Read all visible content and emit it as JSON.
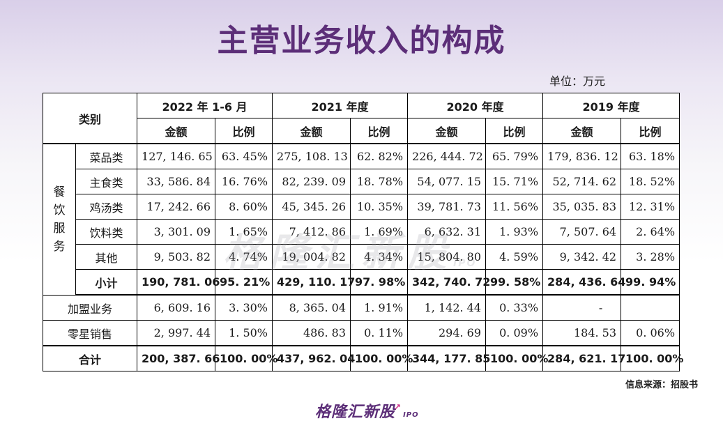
{
  "title": "主营业务收入的构成",
  "unit": "单位：万元",
  "header": {
    "category": "类别",
    "periods": [
      "2022 年 1-6 月",
      "2021 年度",
      "2020 年度",
      "2019 年度"
    ],
    "amount": "金额",
    "ratio": "比例"
  },
  "group_label": [
    "餐",
    "饮",
    "服",
    "务"
  ],
  "rows": [
    {
      "name": "菜品类",
      "values": [
        "127, 146. 65",
        "63. 45%",
        "275, 108. 13",
        "62. 82%",
        "226, 444. 72",
        "65. 79%",
        "179, 836. 12",
        "63. 18%"
      ]
    },
    {
      "name": "主食类",
      "values": [
        "33, 586. 84",
        "16. 76%",
        "82, 239. 09",
        "18. 78%",
        "54, 077. 15",
        "15. 71%",
        "52, 714. 62",
        "18. 52%"
      ]
    },
    {
      "name": "鸡汤类",
      "values": [
        "17, 242. 66",
        "8. 60%",
        "45, 345. 26",
        "10. 35%",
        "39, 781. 73",
        "11. 56%",
        "35, 035. 83",
        "12. 31%"
      ]
    },
    {
      "name": "饮料类",
      "values": [
        "3, 301. 09",
        "1. 65%",
        "7, 412. 86",
        "1. 69%",
        "6, 632. 31",
        "1. 93%",
        "7, 507. 64",
        "2. 64%"
      ]
    },
    {
      "name": "其他",
      "values": [
        "9, 503. 82",
        "4. 74%",
        "19, 004. 82",
        "4. 34%",
        "15, 804. 80",
        "4. 59%",
        "9, 342. 42",
        "3. 28%"
      ]
    }
  ],
  "subtotal": {
    "name": "小计",
    "values": [
      "190, 781. 06",
      "95. 21%",
      "429, 110. 17",
      "97. 98%",
      "342, 740. 72",
      "99. 58%",
      "284, 436. 64",
      "99. 94%"
    ]
  },
  "others": [
    {
      "name": "加盟业务",
      "values": [
        "6, 609. 16",
        "3. 30%",
        "8, 365. 04",
        "1. 91%",
        "1, 142. 44",
        "0. 33%",
        "-",
        ""
      ]
    },
    {
      "name": "零星销售",
      "values": [
        "2, 997. 44",
        "1. 50%",
        "486. 83",
        "0. 11%",
        "294. 69",
        "0. 09%",
        "184. 53",
        "0. 06%"
      ]
    }
  ],
  "total": {
    "name": "合计",
    "values": [
      "200, 387. 66",
      "100. 00%",
      "437, 962. 04",
      "100. 00%",
      "344, 177. 85",
      "100. 00%",
      "284, 621. 17",
      "100. 00%"
    ]
  },
  "watermark": {
    "text": "格隆汇新股",
    "suffix": "IPO"
  },
  "source": "信息来源：招股书",
  "logo": {
    "text": "格隆汇新股",
    "suffix": "IPO"
  }
}
